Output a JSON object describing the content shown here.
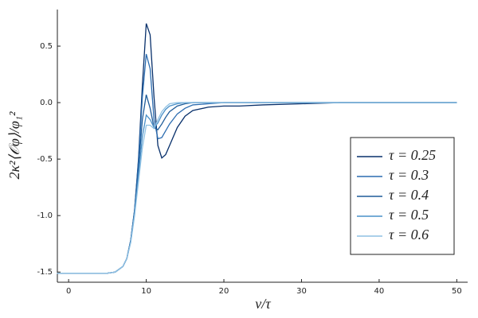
{
  "chart_data": {
    "type": "line",
    "xlabel": "v/τ",
    "ylabel": "2κ²⟨𝒪φ⟩/φ₁²",
    "x": [
      -1.5,
      0,
      2,
      4,
      5,
      6,
      7,
      7.5,
      8,
      8.5,
      9,
      9.5,
      10,
      10.5,
      11,
      11.5,
      12,
      12.5,
      13,
      14,
      15,
      16,
      18,
      20,
      22,
      25,
      30,
      35,
      40,
      45,
      50
    ],
    "series": [
      {
        "name": "τ = 0.25",
        "color": "#08306b",
        "values": [
          -1.51,
          -1.51,
          -1.51,
          -1.51,
          -1.51,
          -1.5,
          -1.45,
          -1.38,
          -1.22,
          -0.95,
          -0.5,
          0.15,
          0.7,
          0.6,
          0.05,
          -0.38,
          -0.49,
          -0.46,
          -0.38,
          -0.22,
          -0.12,
          -0.07,
          -0.04,
          -0.03,
          -0.03,
          -0.02,
          -0.01,
          0,
          0,
          0,
          0
        ]
      },
      {
        "name": "τ = 0.3",
        "color": "#2b6cb0",
        "values": [
          -1.51,
          -1.51,
          -1.51,
          -1.51,
          -1.51,
          -1.5,
          -1.45,
          -1.38,
          -1.22,
          -0.95,
          -0.52,
          0.05,
          0.43,
          0.3,
          -0.15,
          -0.32,
          -0.31,
          -0.25,
          -0.19,
          -0.1,
          -0.05,
          -0.02,
          -0.01,
          0,
          0,
          0,
          0,
          0,
          0,
          0,
          0
        ]
      },
      {
        "name": "τ = 0.4",
        "color": "#1f5c99",
        "values": [
          -1.51,
          -1.51,
          -1.51,
          -1.51,
          -1.51,
          -1.5,
          -1.45,
          -1.38,
          -1.22,
          -0.96,
          -0.58,
          -0.15,
          0.07,
          -0.05,
          -0.22,
          -0.24,
          -0.19,
          -0.13,
          -0.08,
          -0.03,
          -0.01,
          0,
          0,
          0,
          0,
          0,
          0,
          0,
          0,
          0,
          0
        ]
      },
      {
        "name": "τ = 0.5",
        "color": "#4a90c8",
        "values": [
          -1.51,
          -1.51,
          -1.51,
          -1.51,
          -1.51,
          -1.5,
          -1.45,
          -1.38,
          -1.23,
          -0.98,
          -0.65,
          -0.3,
          -0.11,
          -0.15,
          -0.22,
          -0.18,
          -0.11,
          -0.06,
          -0.03,
          -0.01,
          0,
          0,
          0,
          0,
          0,
          0,
          0,
          0,
          0,
          0,
          0
        ]
      },
      {
        "name": "τ = 0.6",
        "color": "#8fc1e3",
        "values": [
          -1.51,
          -1.51,
          -1.51,
          -1.51,
          -1.51,
          -1.5,
          -1.45,
          -1.38,
          -1.24,
          -1.0,
          -0.7,
          -0.4,
          -0.2,
          -0.2,
          -0.23,
          -0.15,
          -0.08,
          -0.04,
          -0.01,
          0,
          0,
          0,
          0,
          0,
          0,
          0,
          0,
          0,
          0,
          0,
          0
        ]
      }
    ],
    "xlim": [
      -1.45,
      51.4
    ],
    "ylim": [
      -1.59,
      0.824
    ],
    "xticks": [
      0,
      10,
      20,
      30,
      40,
      50
    ],
    "yticks": [
      -1.5,
      {
        "value": -1,
        "label": "-1.0"
      },
      -0.5,
      {
        "value": 0,
        "label": "0.0"
      },
      0.5
    ],
    "grid": false,
    "legend": "right"
  }
}
